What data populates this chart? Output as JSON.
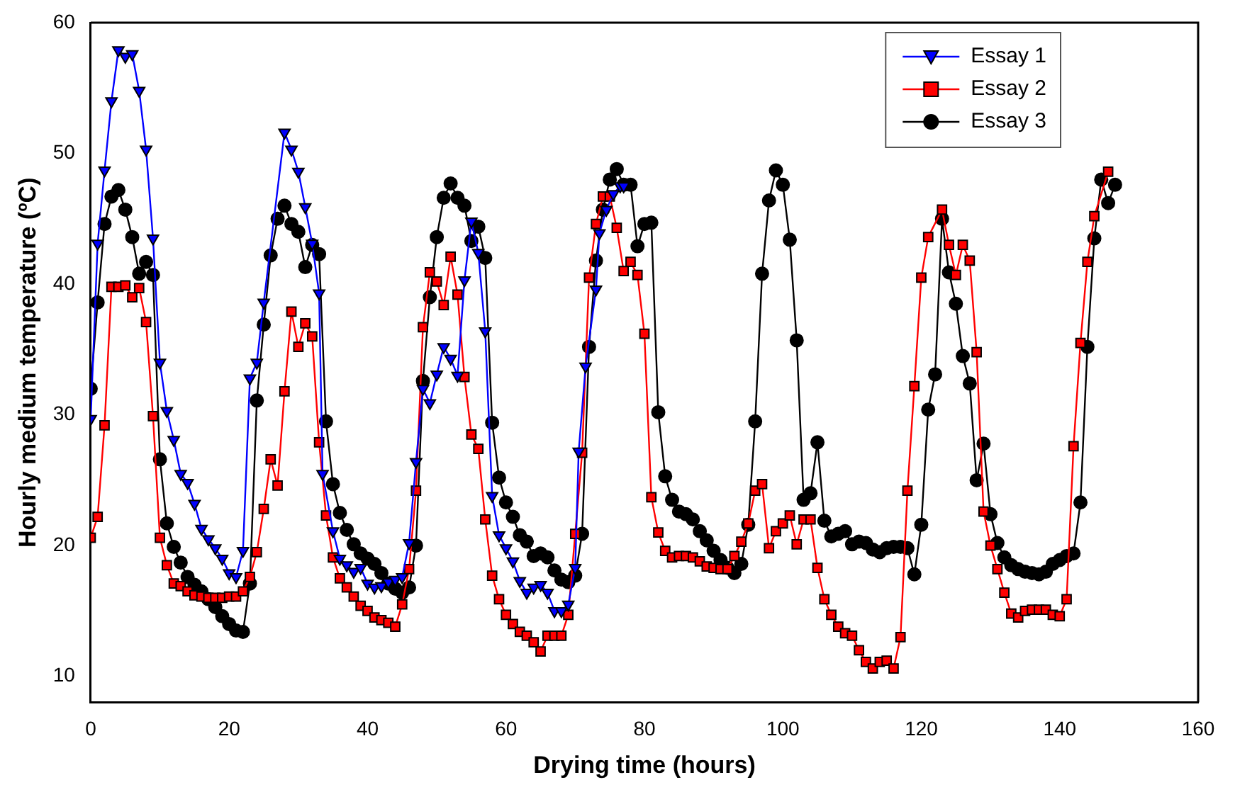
{
  "chart_data": {
    "type": "line",
    "xlabel": "Drying time (hours)",
    "ylabel": "Hourly medium temperature (ºC)",
    "xlim": [
      0,
      160
    ],
    "xticks": [
      0,
      20,
      40,
      60,
      80,
      100,
      120,
      140,
      160
    ],
    "ylim": [
      8,
      60
    ],
    "yticks": [
      10,
      20,
      30,
      40,
      50,
      60
    ],
    "legend": "top right",
    "line_style": "solid",
    "series": [
      {
        "name": "Essay 1",
        "color": "#0000ff",
        "marker": "triangle",
        "x": [
          0,
          1,
          2,
          3,
          4,
          5,
          6,
          7,
          8,
          9,
          10,
          11,
          12,
          13,
          14,
          15,
          16,
          17,
          18,
          19,
          20,
          21,
          22,
          23,
          24,
          25,
          28,
          29,
          30,
          31,
          32,
          33,
          33.5,
          35,
          36,
          37,
          38,
          39,
          40,
          41,
          42,
          43,
          44,
          45,
          46,
          47,
          48,
          49,
          50,
          51,
          52,
          53,
          54,
          55,
          56,
          57,
          58,
          59,
          60,
          61,
          62,
          63,
          64,
          65,
          66,
          67,
          68,
          69,
          70,
          70.5,
          71.5,
          73,
          73.5,
          74.5,
          75.5,
          76.5,
          77
        ],
        "values": [
          29.7,
          43.1,
          48.7,
          54.0,
          57.9,
          57.4,
          57.6,
          54.8,
          50.3,
          43.5,
          34.0,
          30.3,
          28.1,
          25.5,
          24.8,
          23.2,
          21.3,
          20.5,
          19.8,
          19.0,
          17.9,
          17.6,
          19.6,
          32.8,
          34.0,
          38.6,
          51.6,
          50.3,
          48.6,
          45.9,
          43.1,
          39.3,
          25.5,
          21.1,
          19.0,
          18.5,
          18.0,
          18.3,
          17.1,
          16.8,
          16.9,
          17.2,
          17.4,
          17.6,
          20.2,
          26.4,
          32.0,
          30.9,
          33.1,
          35.2,
          34.3,
          33.0,
          40.3,
          44.8,
          42.4,
          36.4,
          23.8,
          20.8,
          19.8,
          18.8,
          17.3,
          16.4,
          16.8,
          17.0,
          16.4,
          15.0,
          15.0,
          15.5,
          18.3,
          27.2,
          33.7,
          39.6,
          43.9,
          45.7,
          46.9,
          47.5,
          47.5
        ]
      },
      {
        "name": "Essay 2",
        "color": "#ff0000",
        "marker": "square",
        "x": [
          0,
          1,
          2,
          3,
          4,
          5,
          6,
          7,
          8,
          9,
          10,
          11,
          12,
          13,
          14,
          15,
          16,
          17,
          18,
          19,
          20,
          21,
          22,
          23,
          24,
          25,
          26,
          27,
          28,
          29,
          30,
          31,
          32,
          33,
          34,
          35,
          36,
          37,
          38,
          39,
          40,
          41,
          42,
          43,
          44,
          45,
          46,
          47,
          48,
          49,
          50,
          51,
          52,
          53,
          54,
          55,
          56,
          57,
          58,
          59,
          60,
          61,
          62,
          63,
          64,
          65,
          66,
          67,
          68,
          69,
          70,
          71,
          72,
          73,
          74,
          75,
          76,
          77,
          78,
          79,
          80,
          81,
          82,
          83,
          84,
          85,
          86,
          87,
          88,
          89,
          90,
          91,
          92,
          93,
          94,
          95,
          96,
          97,
          98,
          99,
          100,
          101,
          102,
          103,
          104,
          105,
          106,
          107,
          108,
          109,
          110,
          111,
          112,
          113,
          114,
          115,
          116,
          117,
          118,
          119,
          120,
          121,
          123,
          124,
          125,
          126,
          127,
          128,
          129,
          130,
          131,
          132,
          133,
          134,
          135,
          136,
          137,
          138,
          139,
          140,
          141,
          142,
          143,
          144,
          145,
          147
        ],
        "values": [
          20.6,
          22.2,
          29.2,
          39.8,
          39.8,
          39.9,
          39.0,
          39.7,
          37.1,
          29.9,
          20.6,
          18.5,
          17.1,
          16.9,
          16.5,
          16.2,
          16.1,
          16.0,
          16.0,
          16.0,
          16.1,
          16.1,
          16.5,
          17.6,
          19.5,
          22.8,
          26.6,
          24.6,
          31.8,
          37.9,
          35.2,
          37.0,
          36.0,
          27.9,
          22.3,
          19.1,
          17.5,
          16.8,
          16.1,
          15.4,
          15.0,
          14.5,
          14.3,
          14.1,
          13.8,
          15.5,
          18.2,
          24.2,
          36.7,
          40.9,
          40.2,
          38.4,
          42.1,
          39.2,
          32.9,
          28.5,
          27.4,
          22.0,
          17.7,
          15.9,
          14.7,
          14.0,
          13.4,
          13.1,
          12.6,
          11.9,
          13.1,
          13.1,
          13.1,
          14.7,
          20.9,
          27.1,
          40.5,
          44.6,
          46.7,
          46.7,
          44.3,
          41.0,
          41.7,
          40.7,
          36.2,
          23.7,
          21.0,
          19.6,
          19.1,
          19.2,
          19.2,
          19.1,
          18.8,
          18.4,
          18.3,
          18.2,
          18.2,
          19.2,
          20.3,
          21.7,
          24.2,
          24.7,
          19.8,
          21.1,
          21.7,
          22.3,
          20.1,
          22.0,
          22.0,
          18.3,
          15.9,
          14.7,
          13.8,
          13.3,
          13.1,
          12.0,
          11.1,
          10.6,
          11.1,
          11.2,
          10.6,
          13.0,
          24.2,
          32.2,
          40.5,
          43.6,
          45.7,
          43.0,
          40.7,
          43.0,
          41.8,
          34.8,
          22.6,
          20.0,
          18.2,
          16.4,
          14.8,
          14.5,
          15.0,
          15.1,
          15.1,
          15.1,
          14.7,
          14.6,
          15.9,
          27.6,
          35.5,
          41.7,
          45.2,
          48.6
        ]
      },
      {
        "name": "Essay 3",
        "color": "#000000",
        "marker": "circle",
        "x": [
          0,
          1,
          2,
          3,
          4,
          5,
          6,
          7,
          8,
          9,
          10,
          11,
          12,
          13,
          14,
          15,
          16,
          17,
          18,
          19,
          20,
          21,
          22,
          23,
          24,
          25,
          26,
          27,
          28,
          29,
          30,
          31,
          32,
          33,
          34,
          35,
          36,
          37,
          38,
          39,
          40,
          41,
          42,
          43,
          44,
          45,
          46,
          47,
          48,
          49,
          50,
          51,
          52,
          53,
          54,
          55,
          56,
          57,
          58,
          59,
          60,
          61,
          62,
          63,
          64,
          65,
          66,
          67,
          68,
          69,
          70,
          71,
          72,
          73,
          74,
          75,
          76,
          77,
          78,
          79,
          80,
          81,
          82,
          83,
          84,
          85,
          86,
          87,
          88,
          89,
          90,
          91,
          92,
          93,
          94,
          95,
          96,
          97,
          98,
          99,
          100,
          101,
          102,
          103,
          104,
          105,
          106,
          107,
          108,
          109,
          110,
          111,
          112,
          113,
          114,
          115,
          116,
          117,
          118,
          119,
          120,
          121,
          122,
          123,
          124,
          125,
          126,
          127,
          128,
          129,
          130,
          131,
          132,
          133,
          134,
          135,
          136,
          137,
          138,
          139,
          140,
          141,
          142,
          143,
          144,
          145,
          146,
          147,
          148
        ],
        "values": [
          32.0,
          38.6,
          44.6,
          46.7,
          47.2,
          45.7,
          43.6,
          40.8,
          41.7,
          40.7,
          26.6,
          21.7,
          19.9,
          18.7,
          17.6,
          17.0,
          16.5,
          15.9,
          15.3,
          14.6,
          14.0,
          13.5,
          13.4,
          17.1,
          31.1,
          36.9,
          42.2,
          45.0,
          46.0,
          44.6,
          44.0,
          41.3,
          43.0,
          42.3,
          29.5,
          24.7,
          22.5,
          21.2,
          20.1,
          19.4,
          19.0,
          18.6,
          17.9,
          17.1,
          16.7,
          16.4,
          16.8,
          20.0,
          32.6,
          39.0,
          43.6,
          46.6,
          47.7,
          46.6,
          46.0,
          43.3,
          44.4,
          42.0,
          29.4,
          25.2,
          23.3,
          22.2,
          20.8,
          20.3,
          19.2,
          19.4,
          19.1,
          18.1,
          17.4,
          17.2,
          17.7,
          20.9,
          35.2,
          41.8,
          45.7,
          48.0,
          48.8,
          47.6,
          47.6,
          42.9,
          44.6,
          44.7,
          30.2,
          25.3,
          23.5,
          22.6,
          22.4,
          22.0,
          21.1,
          20.4,
          19.6,
          18.9,
          18.3,
          17.9,
          18.6,
          21.6,
          29.5,
          40.8,
          46.4,
          48.7,
          47.6,
          43.4,
          35.7,
          23.5,
          24.0,
          27.9,
          21.9,
          20.7,
          20.9,
          21.1,
          20.1,
          20.3,
          20.2,
          19.7,
          19.5,
          19.8,
          19.9,
          19.9,
          19.8,
          17.8,
          21.6,
          30.4,
          33.1,
          45.0,
          40.9,
          38.5,
          34.5,
          32.4,
          25.0,
          27.8,
          22.4,
          20.2,
          19.1,
          18.5,
          18.2,
          18.0,
          17.9,
          17.8,
          18.0,
          18.6,
          18.9,
          19.2,
          19.4,
          23.3,
          35.2,
          43.5,
          48.0,
          46.2,
          47.6
        ]
      }
    ]
  }
}
